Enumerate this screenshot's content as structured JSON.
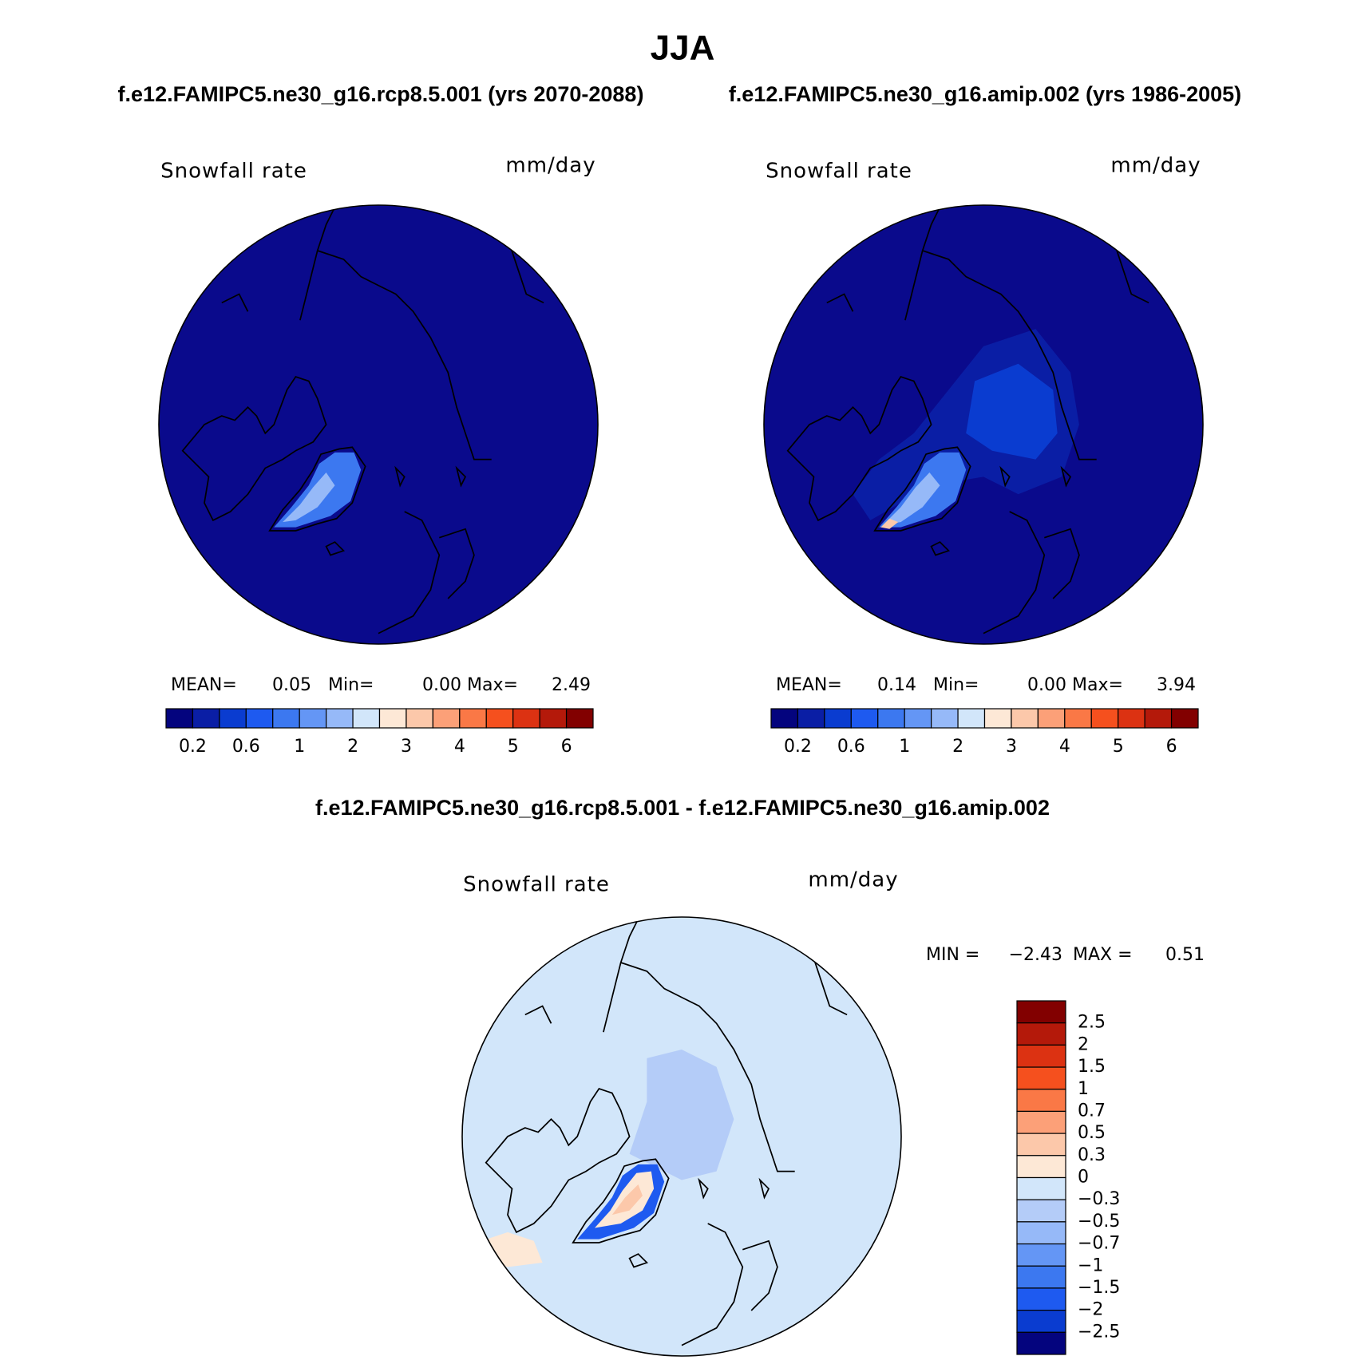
{
  "title": "JJA",
  "panels": [
    {
      "case": "f.e12.FAMIPC5.ne30_g16.rcp8.5.001 (yrs 2070-2088)",
      "variable": "Snowfall rate",
      "units": "mm/day",
      "stats": [
        {
          "label": "MEAN=",
          "value": "0.05"
        },
        {
          "label": "Min=",
          "value": "0.00"
        },
        {
          "label": "Max=",
          "value": "2.49"
        }
      ],
      "colorbar": {
        "colors": [
          "#04047e",
          "#0a1ea5",
          "#0a3cd0",
          "#1e5af0",
          "#3c78f0",
          "#6496f5",
          "#96b9f8",
          "#d2e6fa",
          "#fde8d6",
          "#fcc8aa",
          "#fca078",
          "#fa7846",
          "#f5501e",
          "#dc3212",
          "#b4190a",
          "#820000"
        ],
        "labels": [
          "0.2",
          "0.6",
          "1",
          "2",
          "3",
          "4",
          "5",
          "6"
        ]
      }
    },
    {
      "case": "f.e12.FAMIPC5.ne30_g16.amip.002 (yrs 1986-2005)",
      "variable": "Snowfall rate",
      "units": "mm/day",
      "stats": [
        {
          "label": "MEAN=",
          "value": "0.14"
        },
        {
          "label": "Min=",
          "value": "0.00"
        },
        {
          "label": "Max=",
          "value": "3.94"
        }
      ],
      "colorbar": {
        "colors": [
          "#04047e",
          "#0a1ea5",
          "#0a3cd0",
          "#1e5af0",
          "#3c78f0",
          "#6496f5",
          "#96b9f8",
          "#d2e6fa",
          "#fde8d6",
          "#fcc8aa",
          "#fca078",
          "#fa7846",
          "#f5501e",
          "#dc3212",
          "#b4190a",
          "#820000"
        ],
        "labels": [
          "0.2",
          "0.6",
          "1",
          "2",
          "3",
          "4",
          "5",
          "6"
        ]
      }
    }
  ],
  "difference": {
    "title": "f.e12.FAMIPC5.ne30_g16.rcp8.5.001 - f.e12.FAMIPC5.ne30_g16.amip.002",
    "variable": "Snowfall rate",
    "units": "mm/day",
    "stats": [
      {
        "label": "MIN =",
        "value": "−2.43"
      },
      {
        "label": "MAX =",
        "value": "0.51"
      }
    ],
    "colorbar": {
      "colors": [
        "#820000",
        "#b4190a",
        "#dc3212",
        "#f5501e",
        "#fa7846",
        "#fca078",
        "#fcc8aa",
        "#fde8d6",
        "#d2e6fa",
        "#b4ccf8",
        "#96b9f8",
        "#6496f5",
        "#3c78f0",
        "#1e5af0",
        "#0a3cd0",
        "#04047e"
      ],
      "labels": [
        "2.5",
        "2",
        "1.5",
        "1",
        "0.7",
        "0.5",
        "0.3",
        "0",
        "−0.3",
        "−0.5",
        "−0.7",
        "−1",
        "−1.5",
        "−2",
        "−2.5"
      ]
    }
  }
}
